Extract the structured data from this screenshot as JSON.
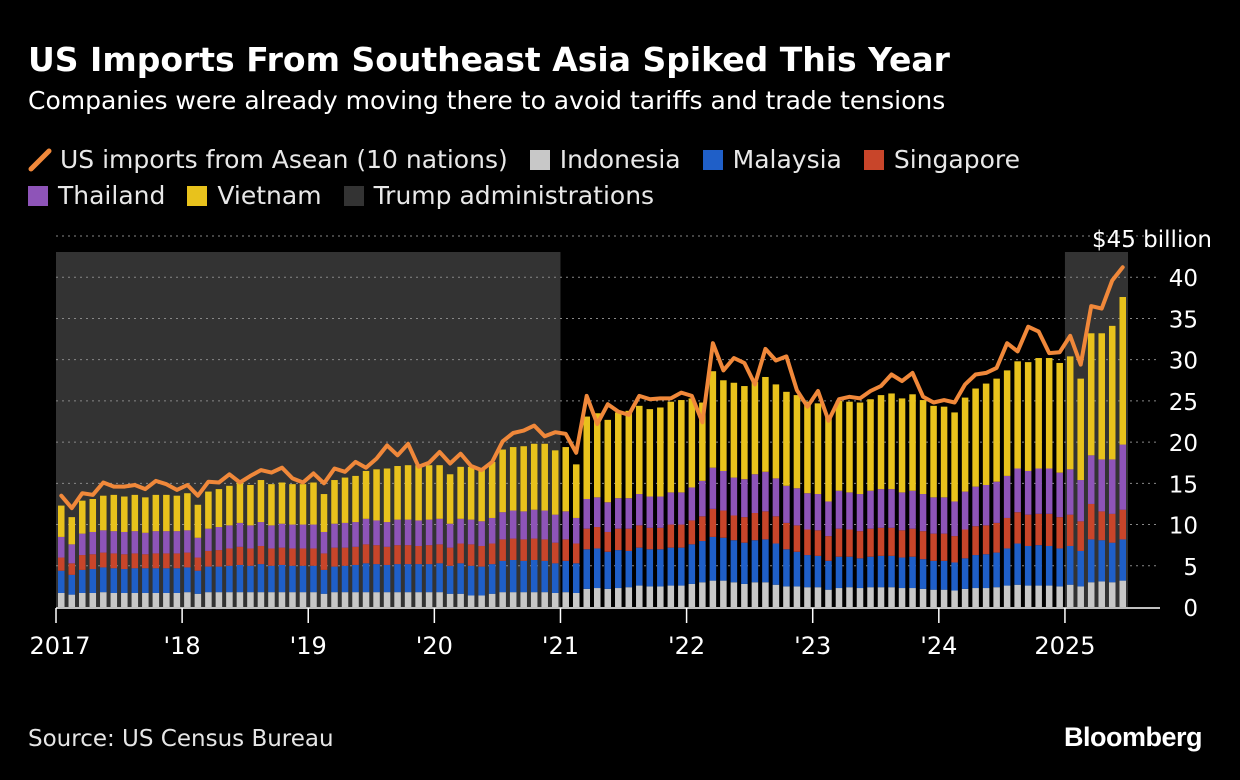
{
  "header": {
    "title": "US Imports From Southeast Asia Spiked This Year",
    "subtitle": "Companies were already moving there to avoid tariffs and trade tensions"
  },
  "legend": {
    "asean_line": "US imports from Asean (10 nations)",
    "indonesia": "Indonesia",
    "malaysia": "Malaysia",
    "singapore": "Singapore",
    "thailand": "Thailand",
    "vietnam": "Vietnam",
    "trump": "Trump administrations"
  },
  "footer": {
    "source": "Source: US Census Bureau",
    "logo": "Bloomberg"
  },
  "colors": {
    "line": "#f0883a",
    "indonesia": "#c8c8c8",
    "malaysia": "#1f5fc8",
    "singapore": "#c8452a",
    "thailand": "#8e54b8",
    "vietnam": "#e8c21c",
    "trump_shade": "#333333",
    "grid": "#888888",
    "axis": "#ffffff"
  },
  "chart_data": {
    "type": "bar",
    "stacked": true,
    "ylim": [
      0,
      45
    ],
    "yticks": [
      0,
      5,
      10,
      15,
      20,
      25,
      30,
      35,
      40
    ],
    "y_top_label": "$45 billion",
    "x_tick_labels": [
      "2017",
      "'18",
      "'19",
      "'20",
      "'21",
      "'22",
      "'23",
      "'24",
      "2025"
    ],
    "start_month": "2017-01",
    "end_month": "2025-06",
    "shaded_periods": [
      {
        "name": "Trump administrations",
        "start": "2017-01",
        "end": "2020-12"
      },
      {
        "name": "Trump administrations",
        "start": "2025-01",
        "end": "2025-06"
      }
    ],
    "series": [
      {
        "name": "Indonesia",
        "values": [
          1.7,
          1.5,
          1.7,
          1.7,
          1.8,
          1.7,
          1.7,
          1.7,
          1.7,
          1.7,
          1.7,
          1.7,
          1.8,
          1.6,
          1.8,
          1.8,
          1.8,
          1.8,
          1.8,
          1.8,
          1.8,
          1.8,
          1.8,
          1.8,
          1.8,
          1.6,
          1.8,
          1.8,
          1.8,
          1.8,
          1.8,
          1.8,
          1.8,
          1.8,
          1.8,
          1.8,
          1.8,
          1.6,
          1.6,
          1.4,
          1.4,
          1.6,
          1.8,
          1.8,
          1.8,
          1.8,
          1.8,
          1.7,
          1.8,
          1.7,
          2.2,
          2.3,
          2.2,
          2.3,
          2.4,
          2.6,
          2.5,
          2.5,
          2.6,
          2.6,
          2.8,
          3.0,
          3.2,
          3.2,
          3.0,
          2.8,
          3.0,
          3.0,
          2.7,
          2.5,
          2.5,
          2.4,
          2.4,
          2.1,
          2.3,
          2.4,
          2.3,
          2.4,
          2.4,
          2.4,
          2.3,
          2.3,
          2.2,
          2.1,
          2.1,
          2.0,
          2.2,
          2.3,
          2.3,
          2.4,
          2.6,
          2.7,
          2.6,
          2.6,
          2.6,
          2.5,
          2.7,
          2.5,
          3.0,
          3.1,
          3.0,
          3.2
        ]
      },
      {
        "name": "Malaysia",
        "values": [
          2.7,
          2.4,
          2.8,
          2.9,
          3.0,
          3.0,
          2.9,
          3.0,
          3.0,
          3.0,
          3.0,
          3.0,
          3.0,
          2.8,
          3.1,
          3.1,
          3.2,
          3.3,
          3.2,
          3.4,
          3.2,
          3.3,
          3.2,
          3.2,
          3.2,
          2.9,
          3.1,
          3.2,
          3.3,
          3.5,
          3.4,
          3.3,
          3.4,
          3.4,
          3.4,
          3.4,
          3.5,
          3.4,
          3.7,
          3.6,
          3.5,
          3.6,
          3.8,
          3.9,
          3.8,
          3.9,
          3.8,
          3.6,
          3.8,
          3.6,
          4.8,
          4.8,
          4.5,
          4.6,
          4.4,
          4.6,
          4.5,
          4.5,
          4.6,
          4.6,
          4.8,
          5.0,
          5.3,
          5.2,
          5.1,
          5.0,
          5.1,
          5.2,
          5.0,
          4.5,
          4.2,
          3.9,
          3.8,
          3.5,
          3.8,
          3.7,
          3.6,
          3.7,
          3.8,
          3.8,
          3.7,
          3.8,
          3.6,
          3.5,
          3.5,
          3.4,
          3.7,
          4.0,
          4.1,
          4.2,
          4.5,
          5.0,
          4.8,
          4.9,
          4.8,
          4.6,
          4.7,
          4.3,
          5.2,
          5.0,
          4.8,
          5.0
        ]
      },
      {
        "name": "Singapore",
        "values": [
          1.6,
          1.4,
          1.8,
          1.8,
          1.8,
          1.8,
          1.8,
          1.8,
          1.7,
          1.8,
          1.8,
          1.8,
          1.8,
          1.6,
          1.9,
          2.0,
          2.1,
          2.2,
          2.1,
          2.2,
          2.1,
          2.1,
          2.1,
          2.1,
          2.1,
          2.0,
          2.3,
          2.2,
          2.2,
          2.3,
          2.3,
          2.2,
          2.3,
          2.3,
          2.2,
          2.3,
          2.3,
          2.2,
          2.4,
          2.6,
          2.5,
          2.5,
          2.6,
          2.6,
          2.6,
          2.6,
          2.6,
          2.5,
          2.6,
          2.4,
          2.5,
          2.6,
          2.4,
          2.6,
          2.7,
          2.7,
          2.6,
          2.6,
          2.8,
          2.8,
          2.9,
          3.0,
          3.4,
          3.3,
          3.0,
          3.1,
          3.3,
          3.4,
          3.3,
          3.2,
          3.2,
          3.1,
          3.1,
          3.0,
          3.4,
          3.3,
          3.3,
          3.4,
          3.4,
          3.4,
          3.3,
          3.4,
          3.4,
          3.3,
          3.3,
          3.2,
          3.5,
          3.5,
          3.5,
          3.6,
          3.7,
          3.8,
          3.8,
          3.8,
          3.9,
          3.8,
          3.8,
          3.6,
          4.3,
          3.5,
          3.5,
          3.6
        ]
      },
      {
        "name": "Thailand",
        "values": [
          2.5,
          2.3,
          2.6,
          2.7,
          2.7,
          2.7,
          2.7,
          2.7,
          2.6,
          2.7,
          2.7,
          2.7,
          2.7,
          2.4,
          2.7,
          2.8,
          2.8,
          2.9,
          2.8,
          2.9,
          2.8,
          2.9,
          2.9,
          2.9,
          2.9,
          2.6,
          2.9,
          3.0,
          3.0,
          3.1,
          3.0,
          3.0,
          3.1,
          3.1,
          3.1,
          3.1,
          3.1,
          2.9,
          3.0,
          3.0,
          3.0,
          3.1,
          3.3,
          3.4,
          3.4,
          3.5,
          3.5,
          3.4,
          3.4,
          3.1,
          3.6,
          3.6,
          3.6,
          3.7,
          3.7,
          3.8,
          3.8,
          3.8,
          3.9,
          3.9,
          4.0,
          4.3,
          5.0,
          4.8,
          4.6,
          4.6,
          4.7,
          4.8,
          4.6,
          4.5,
          4.5,
          4.4,
          4.4,
          4.2,
          4.6,
          4.5,
          4.5,
          4.6,
          4.7,
          4.7,
          4.6,
          4.6,
          4.5,
          4.4,
          4.4,
          4.2,
          4.6,
          4.8,
          4.9,
          5.0,
          5.1,
          5.3,
          5.3,
          5.5,
          5.5,
          5.4,
          5.5,
          5.0,
          5.9,
          6.3,
          6.6,
          7.9
        ]
      },
      {
        "name": "Vietnam",
        "values": [
          3.8,
          3.3,
          4.0,
          4.0,
          4.2,
          4.4,
          4.3,
          4.4,
          4.3,
          4.4,
          4.4,
          4.3,
          4.5,
          4.0,
          4.5,
          4.6,
          4.8,
          5.0,
          4.9,
          5.1,
          5.0,
          5.0,
          4.9,
          4.9,
          5.1,
          4.6,
          5.3,
          5.5,
          5.6,
          5.8,
          6.2,
          6.5,
          6.5,
          6.6,
          6.7,
          6.6,
          6.5,
          6.0,
          6.3,
          6.4,
          6.3,
          6.8,
          7.6,
          7.7,
          7.9,
          8.0,
          8.1,
          7.8,
          7.8,
          6.5,
          10.0,
          10.2,
          10.0,
          10.4,
          10.6,
          10.7,
          10.6,
          10.8,
          11.0,
          11.2,
          10.8,
          9.5,
          11.7,
          11.0,
          11.5,
          11.3,
          11.2,
          11.5,
          11.4,
          11.4,
          11.3,
          11.1,
          11.0,
          10.3,
          10.9,
          11.0,
          11.1,
          11.1,
          11.4,
          11.6,
          11.4,
          11.7,
          11.4,
          11.1,
          11.0,
          10.8,
          11.4,
          11.9,
          12.3,
          12.5,
          12.8,
          13.0,
          13.2,
          13.4,
          13.4,
          13.3,
          13.7,
          12.3,
          14.8,
          15.3,
          16.2,
          17.9
        ]
      }
    ],
    "line": {
      "name": "US imports from Asean (10 nations)",
      "values": [
        13.5,
        12.0,
        13.8,
        13.6,
        15.1,
        14.6,
        14.6,
        14.8,
        14.3,
        15.3,
        14.9,
        14.2,
        14.8,
        13.5,
        15.2,
        15.1,
        16.1,
        15.1,
        15.9,
        16.6,
        16.3,
        16.9,
        15.6,
        15.1,
        16.2,
        15.0,
        16.8,
        16.4,
        17.6,
        16.9,
        18.0,
        19.6,
        18.4,
        19.8,
        17.0,
        17.5,
        18.8,
        17.4,
        18.6,
        17.1,
        16.6,
        17.6,
        20.1,
        21.1,
        21.4,
        22.0,
        20.7,
        21.2,
        21.0,
        18.7,
        25.6,
        22.2,
        24.6,
        23.7,
        23.3,
        25.6,
        25.2,
        25.3,
        25.3,
        26.0,
        25.6,
        22.4,
        32.0,
        28.7,
        30.2,
        29.6,
        27.0,
        31.3,
        29.9,
        30.4,
        26.3,
        24.3,
        26.2,
        22.6,
        25.2,
        25.5,
        25.3,
        26.2,
        26.8,
        28.2,
        27.4,
        28.4,
        25.5,
        24.8,
        25.1,
        24.8,
        27.0,
        28.2,
        28.4,
        29.0,
        32.0,
        31.0,
        34.0,
        33.4,
        30.8,
        30.9,
        32.9,
        29.4,
        36.5,
        36.2,
        39.6,
        41.2
      ]
    }
  }
}
